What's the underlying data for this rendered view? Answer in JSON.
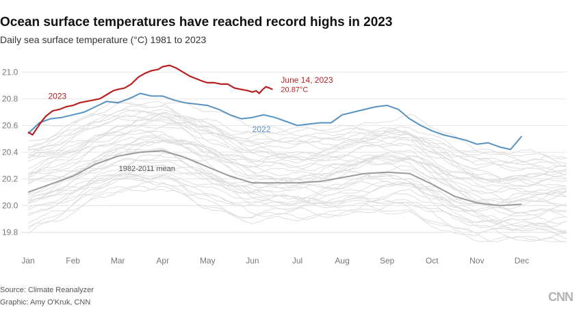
{
  "header": {
    "title": "Ocean surface temperatures have reached record highs in 2023",
    "subtitle": "Daily sea surface temperature (°C) 1981 to 2023"
  },
  "footer": {
    "source": "Source: Climate Reanalyzer",
    "credit": "Graphic: Amy O'Kruk, CNN",
    "logo": "CNN"
  },
  "colors": {
    "y2023": "#b81f1f",
    "y2022": "#5592c2",
    "mean": "#9a9a9a",
    "background_years": "#dedede",
    "grid": "#e6e6e6",
    "axis_text": "#777777"
  },
  "chart_data": {
    "type": "line",
    "title": "Ocean surface temperatures have reached record highs in 2023",
    "subtitle": "Daily sea surface temperature (°C) 1981 to 2023",
    "xlabel": "",
    "ylabel": "",
    "x_domain": [
      0,
      12
    ],
    "ylim": [
      19.7,
      21.1
    ],
    "yticks": [
      19.8,
      20.0,
      20.2,
      20.4,
      20.6,
      20.8,
      21.0
    ],
    "ytick_labels": [
      "19.8",
      "20.0",
      "20.2",
      "20.4",
      "20.6",
      "20.8",
      "21.0"
    ],
    "xticks": [
      0,
      1,
      2,
      3,
      4,
      5,
      6,
      7,
      8,
      9,
      10,
      11
    ],
    "xtick_labels": [
      "Jan",
      "Feb",
      "Mar",
      "Apr",
      "May",
      "Jun",
      "Jul",
      "Aug",
      "Sep",
      "Oct",
      "Nov",
      "Dec"
    ],
    "grid": true,
    "series": [
      {
        "name": "2023",
        "label": "2023",
        "x": [
          0,
          0.1,
          0.2,
          0.3,
          0.4,
          0.55,
          0.7,
          0.85,
          1.0,
          1.15,
          1.3,
          1.45,
          1.6,
          1.75,
          1.9,
          2.0,
          2.15,
          2.3,
          2.45,
          2.6,
          2.75,
          2.9,
          3.0,
          3.15,
          3.3,
          3.45,
          3.6,
          3.75,
          3.9,
          4.0,
          4.15,
          4.3,
          4.45,
          4.6,
          4.75,
          4.9,
          5.0,
          5.08,
          5.15,
          5.23,
          5.3,
          5.38,
          5.45
        ],
        "y": [
          20.55,
          20.53,
          20.58,
          20.63,
          20.67,
          20.71,
          20.72,
          20.74,
          20.75,
          20.77,
          20.78,
          20.79,
          20.8,
          20.83,
          20.86,
          20.87,
          20.88,
          20.91,
          20.96,
          20.99,
          21.01,
          21.02,
          21.04,
          21.05,
          21.03,
          21.0,
          20.97,
          20.95,
          20.93,
          20.92,
          20.92,
          20.91,
          20.91,
          20.88,
          20.87,
          20.86,
          20.85,
          20.86,
          20.84,
          20.87,
          20.89,
          20.88,
          20.87
        ]
      },
      {
        "name": "2022",
        "label": "2022",
        "x": [
          0,
          0.25,
          0.5,
          0.75,
          1.0,
          1.25,
          1.5,
          1.75,
          2.0,
          2.25,
          2.5,
          2.75,
          3.0,
          3.25,
          3.5,
          3.75,
          4.0,
          4.25,
          4.5,
          4.75,
          5.0,
          5.25,
          5.5,
          5.75,
          6.0,
          6.25,
          6.5,
          6.75,
          7.0,
          7.25,
          7.5,
          7.75,
          8.0,
          8.25,
          8.5,
          8.75,
          9.0,
          9.25,
          9.5,
          9.75,
          10.0,
          10.25,
          10.5,
          10.75,
          11.0
        ],
        "y": [
          20.54,
          20.62,
          20.65,
          20.66,
          20.68,
          20.7,
          20.74,
          20.78,
          20.77,
          20.8,
          20.84,
          20.82,
          20.82,
          20.79,
          20.77,
          20.76,
          20.75,
          20.72,
          20.68,
          20.65,
          20.66,
          20.68,
          20.66,
          20.63,
          20.6,
          20.61,
          20.62,
          20.62,
          20.68,
          20.7,
          20.72,
          20.74,
          20.75,
          20.72,
          20.65,
          20.6,
          20.56,
          20.53,
          20.51,
          20.49,
          20.46,
          20.47,
          20.44,
          20.42,
          20.52
        ]
      },
      {
        "name": "1982-2011 mean",
        "label": "1982-2011 mean",
        "x": [
          0,
          0.5,
          1.0,
          1.5,
          2.0,
          2.5,
          3.0,
          3.5,
          4.0,
          4.5,
          5.0,
          5.5,
          6.0,
          6.5,
          7.0,
          7.5,
          8.0,
          8.5,
          9.0,
          9.5,
          10.0,
          10.5,
          11.0
        ],
        "y": [
          20.1,
          20.16,
          20.22,
          20.31,
          20.37,
          20.4,
          20.41,
          20.36,
          20.29,
          20.22,
          20.17,
          20.17,
          20.17,
          20.18,
          20.21,
          20.24,
          20.25,
          20.24,
          20.16,
          20.07,
          20.02,
          20.0,
          20.01
        ]
      }
    ],
    "background_series_count": 40,
    "annotations": [
      {
        "text": "June 14, 2023",
        "series": "2023"
      },
      {
        "text": "20.87°C",
        "series": "2023"
      }
    ]
  }
}
